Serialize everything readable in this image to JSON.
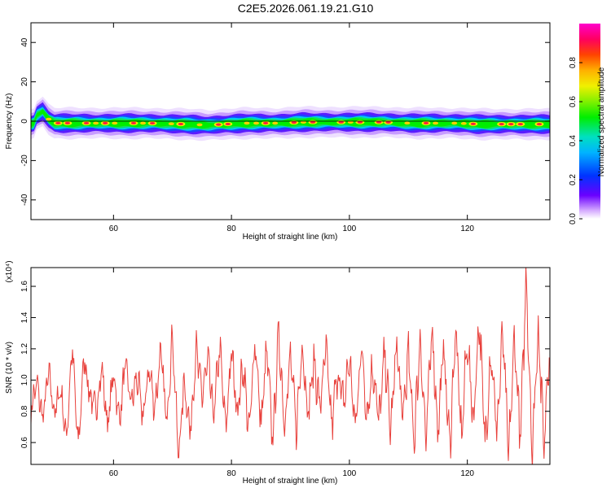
{
  "chart_data": [
    {
      "type": "heatmap",
      "title": "C2E5.2026.061.19.21.G10",
      "xlabel": "Height of straight line (km)",
      "ylabel": "Frequency (Hz)",
      "xlim": [
        46,
        134
      ],
      "ylim": [
        -50,
        50
      ],
      "xticks": [
        60,
        80,
        100,
        120
      ],
      "yticks": [
        40,
        20,
        0,
        -20,
        -40
      ],
      "colorbar": {
        "label": "Normalized spectral amplitude",
        "range": [
          0.0,
          1.0
        ],
        "ticks": [
          "0.0",
          "0.2",
          "0.4",
          "0.6",
          "0.8"
        ],
        "colormap": "rainbow (white-violet-blue-cyan-green-yellow-orange-red-magenta)"
      },
      "band_center_hz": [
        [
          46.5,
          -1
        ],
        [
          47,
          3
        ],
        [
          48,
          5
        ],
        [
          49,
          1
        ],
        [
          50,
          -1
        ],
        [
          52,
          -1
        ],
        [
          56,
          -1
        ],
        [
          60,
          -1
        ],
        [
          66,
          -1
        ],
        [
          72,
          -1.5
        ],
        [
          76,
          -2
        ],
        [
          82,
          -1
        ],
        [
          88,
          -1
        ],
        [
          92,
          -0.5
        ],
        [
          100,
          -0.5
        ],
        [
          106,
          -0.5
        ],
        [
          110,
          -1
        ],
        [
          114,
          -1
        ],
        [
          118,
          -1
        ],
        [
          122,
          -1.5
        ],
        [
          126,
          -1.5
        ],
        [
          130,
          -1.5
        ],
        [
          134,
          -1.5
        ]
      ],
      "band_halfwidth_hz": 3
    },
    {
      "type": "line",
      "title": "",
      "xlabel": "Height of straight line (km)",
      "ylabel": "SNR (10 * v/v)",
      "scale_note": "(x10⁴)",
      "xlim": [
        46,
        134
      ],
      "ylim": [
        0.46,
        1.72
      ],
      "xticks": [
        60,
        80,
        100,
        120
      ],
      "yticks": [
        0.6,
        0.8,
        1.0,
        1.2,
        1.4,
        1.6
      ],
      "ytick_labels": [
        "0.6",
        "0.8",
        "1.0",
        "1.2",
        "1.4",
        "1.6"
      ],
      "color": "#e8413c",
      "series": [
        {
          "x": [
            46,
            47,
            48,
            49,
            50,
            51,
            52,
            53,
            54,
            55,
            56,
            57,
            58,
            59,
            60,
            61,
            62,
            63,
            64,
            65,
            66,
            67,
            68,
            69,
            70,
            71,
            72,
            73,
            74,
            75,
            76,
            77,
            78,
            79,
            80,
            81,
            82,
            83,
            84,
            85,
            86,
            87,
            88,
            89,
            90,
            91,
            92,
            93,
            94,
            95,
            96,
            97,
            98,
            99,
            100,
            101,
            102,
            103,
            104,
            105,
            106,
            107,
            108,
            109,
            110,
            111,
            112,
            113,
            114,
            115,
            116,
            117,
            118,
            119,
            120,
            121,
            122,
            123,
            124,
            125,
            126,
            127,
            128,
            129,
            130,
            131,
            132,
            133,
            134
          ],
          "y": [
            0.82,
            0.98,
            0.75,
            1.05,
            0.78,
            0.95,
            0.62,
            1.22,
            0.56,
            1.15,
            0.9,
            0.8,
            1.08,
            0.7,
            1.05,
            0.74,
            1.1,
            0.85,
            1.02,
            0.75,
            1.08,
            0.82,
            1.18,
            0.73,
            1.3,
            0.5,
            1.0,
            0.66,
            1.2,
            0.9,
            1.12,
            0.76,
            1.22,
            0.68,
            1.18,
            0.8,
            1.1,
            0.64,
            1.28,
            0.7,
            1.2,
            0.6,
            1.3,
            0.72,
            1.15,
            0.68,
            1.24,
            0.78,
            1.12,
            0.82,
            1.2,
            0.7,
            1.06,
            0.84,
            1.14,
            0.68,
            1.22,
            0.78,
            1.1,
            0.72,
            1.18,
            0.66,
            1.24,
            0.74,
            1.16,
            0.62,
            1.28,
            0.58,
            1.36,
            0.66,
            1.22,
            0.55,
            1.33,
            0.62,
            1.27,
            0.72,
            1.4,
            0.58,
            1.2,
            0.66,
            1.3,
            0.5,
            1.28,
            0.6,
            1.68,
            0.52,
            1.36,
            0.58,
            1.34
          ]
        }
      ]
    }
  ]
}
